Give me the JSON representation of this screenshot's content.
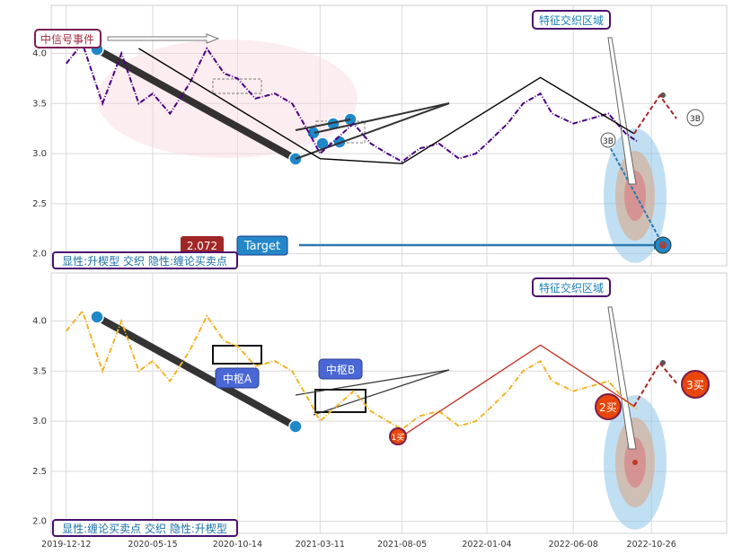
{
  "chart_data": [
    {
      "type": "line",
      "panel": "top",
      "series": [
        {
          "role": "price",
          "color": "#4b0082",
          "style": "dash-dot",
          "x": [
            "2019-12-12",
            "2020-01-10",
            "2020-02-15",
            "2020-03-20",
            "2020-04-20",
            "2020-05-15",
            "2020-06-15",
            "2020-07-20",
            "2020-08-20",
            "2020-09-20",
            "2020-10-14",
            "2020-11-15",
            "2020-12-20",
            "2021-01-20",
            "2021-02-20",
            "2021-03-11",
            "2021-04-10",
            "2021-05-10",
            "2021-06-10",
            "2021-07-10",
            "2021-08-05",
            "2021-09-05",
            "2021-10-10",
            "2021-11-15",
            "2021-12-15",
            "2022-01-04",
            "2022-02-10",
            "2022-03-10",
            "2022-04-10",
            "2022-05-01",
            "2022-06-08",
            "2022-07-10",
            "2022-08-10",
            "2022-09-10",
            "2022-10-01"
          ],
          "y": [
            3.9,
            4.1,
            3.5,
            4.0,
            3.5,
            3.6,
            3.4,
            3.7,
            4.05,
            3.8,
            3.75,
            3.55,
            3.6,
            3.5,
            3.2,
            3.0,
            3.15,
            3.3,
            3.1,
            3.0,
            2.92,
            3.05,
            3.1,
            2.95,
            3.0,
            3.1,
            3.3,
            3.5,
            3.6,
            3.4,
            3.3,
            3.35,
            3.4,
            3.2,
            3.12
          ]
        },
        {
          "role": "zigzag",
          "color": "#000000",
          "x": [
            "2020-04-20",
            "2021-03-11",
            "2021-08-05",
            "2022-04-10",
            "2022-09-25"
          ],
          "y": [
            4.05,
            2.95,
            2.9,
            3.76,
            3.2
          ]
        },
        {
          "role": "forecast",
          "color": "#a52a2a",
          "style": "dashed",
          "x": [
            "2022-09-25",
            "2022-11-10",
            "2022-12-10"
          ],
          "y": [
            3.2,
            3.58,
            3.35
          ]
        }
      ],
      "annotations": [
        "中信号事件",
        "特征交织区域",
        "2.072",
        "Target",
        "3B",
        "3B"
      ],
      "legend": "显性:升楔型 交织 隐性:缠论买卖点",
      "ylim": [
        1.88,
        4.48
      ],
      "yticks": [
        "2.0",
        "2.5",
        "3.0",
        "3.5",
        "4.0"
      ]
    },
    {
      "type": "line",
      "panel": "bottom",
      "series": [
        {
          "role": "price",
          "color": "#f0b429",
          "style": "dash-dot",
          "x": [
            "2019-12-12",
            "2020-01-10",
            "2020-02-15",
            "2020-03-20",
            "2020-04-20",
            "2020-05-15",
            "2020-06-15",
            "2020-07-20",
            "2020-08-20",
            "2020-09-20",
            "2020-10-14",
            "2020-11-15",
            "2020-12-20",
            "2021-01-20",
            "2021-02-20",
            "2021-03-11",
            "2021-04-10",
            "2021-05-10",
            "2021-06-10",
            "2021-07-10",
            "2021-08-05",
            "2021-09-05",
            "2021-10-10",
            "2021-11-15",
            "2021-12-15",
            "2022-01-04",
            "2022-02-10",
            "2022-03-10",
            "2022-04-10",
            "2022-05-01",
            "2022-06-08",
            "2022-07-10",
            "2022-08-10",
            "2022-09-10",
            "2022-10-01"
          ],
          "y": [
            3.9,
            4.1,
            3.5,
            4.0,
            3.5,
            3.6,
            3.4,
            3.7,
            4.05,
            3.8,
            3.75,
            3.55,
            3.6,
            3.5,
            3.2,
            3.0,
            3.15,
            3.3,
            3.1,
            3.0,
            2.92,
            3.05,
            3.1,
            2.95,
            3.0,
            3.1,
            3.3,
            3.5,
            3.6,
            3.4,
            3.3,
            3.35,
            3.4,
            3.2,
            3.12
          ]
        },
        {
          "role": "zigzag",
          "color": "#c0392b",
          "x": [
            "2021-08-05",
            "2022-04-10",
            "2022-09-25"
          ],
          "y": [
            2.85,
            3.76,
            3.15
          ]
        },
        {
          "role": "forecast",
          "color": "#a52a2a",
          "style": "dashed",
          "x": [
            "2022-09-25",
            "2022-11-10",
            "2022-12-10"
          ],
          "y": [
            3.15,
            3.58,
            3.38
          ]
        }
      ],
      "annotations": [
        "特征交织区域",
        "中枢A",
        "中枢B",
        "1买",
        "2买",
        "3买"
      ],
      "legend": "显性:缠论买卖点 交织 隐性:升楔型",
      "ylim": [
        1.88,
        4.48
      ],
      "yticks": [
        "2.0",
        "2.5",
        "3.0",
        "3.5",
        "4.0"
      ],
      "xticks": [
        "2019-12-12",
        "2020-05-15",
        "2020-10-14",
        "2021-03-11",
        "2021-08-05",
        "2022-01-04",
        "2022-06-08",
        "2022-10-26"
      ]
    }
  ],
  "ui": {
    "top_signal_label": "中信号事件",
    "top_zone_label": "特征交织区域",
    "target_value": "2.072",
    "target_label": "Target",
    "top_legend": "显性:升楔型 交织 隐性:缠论买卖点",
    "label_3b_a": "3B",
    "label_3b_b": "3B",
    "bottom_zone_label": "特征交织区域",
    "pivot_a": "中枢A",
    "pivot_b": "中枢B",
    "buy1": "1买",
    "buy2": "2买",
    "buy3": "3买",
    "bottom_legend": "显性:缠论买卖点 交织 隐性:升楔型"
  }
}
